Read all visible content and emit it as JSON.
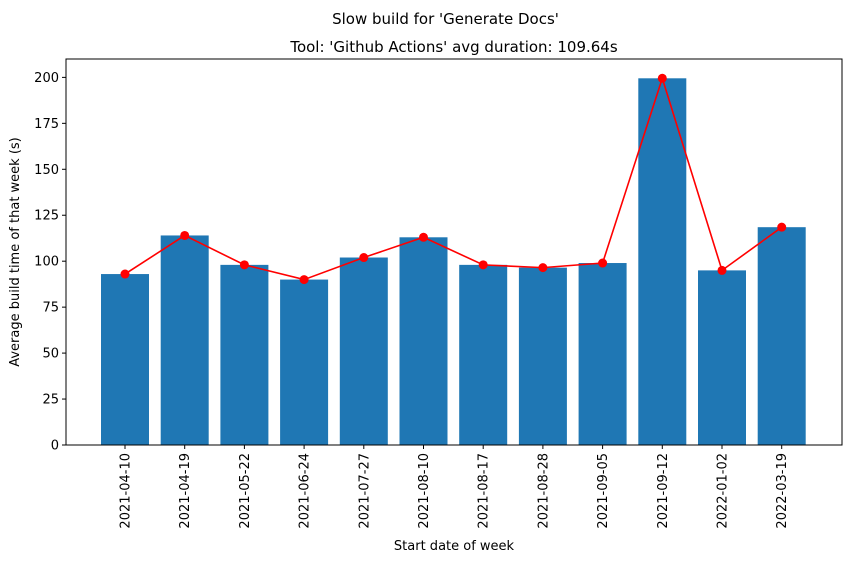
{
  "chart_data": {
    "type": "bar",
    "suptitle": "Slow build for 'Generate Docs'",
    "title": "Tool: 'Github Actions' avg duration: 109.64s",
    "xlabel": "Start date of week",
    "ylabel": "Average build time of that week (s)",
    "categories": [
      "2021-04-10",
      "2021-04-19",
      "2021-05-22",
      "2021-06-24",
      "2021-07-27",
      "2021-08-10",
      "2021-08-17",
      "2021-08-28",
      "2021-09-05",
      "2021-09-12",
      "2022-01-02",
      "2022-03-19"
    ],
    "values": [
      93,
      114,
      98,
      90,
      102,
      113,
      98,
      96.5,
      99,
      199.5,
      95,
      118.5
    ],
    "ylim": [
      0,
      210
    ],
    "yticks": [
      0,
      25,
      50,
      75,
      100,
      125,
      150,
      175,
      200
    ],
    "bar_color": "#1f77b4",
    "line_color": "#ff0000",
    "overlay": "line-with-markers",
    "grid": false
  }
}
